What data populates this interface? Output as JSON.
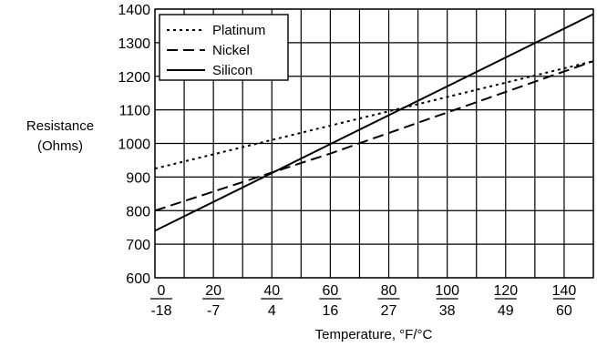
{
  "chart_data": {
    "type": "line",
    "title": "",
    "xlabel": "Temperature, °F/°C",
    "ylabel_lines": [
      "Resistance",
      "(Ohms)"
    ],
    "xlim": [
      0,
      150
    ],
    "ylim": [
      600,
      1400
    ],
    "yticks": [
      600,
      700,
      800,
      900,
      1000,
      1100,
      1200,
      1300,
      1400
    ],
    "xticks": [
      {
        "f": "0",
        "c": "-18",
        "x": 0
      },
      {
        "f": "20",
        "c": "-7",
        "x": 20
      },
      {
        "f": "40",
        "c": "4",
        "x": 40
      },
      {
        "f": "60",
        "c": "16",
        "x": 60
      },
      {
        "f": "80",
        "c": "27",
        "x": 80
      },
      {
        "f": "100",
        "c": "38",
        "x": 100
      },
      {
        "f": "120",
        "c": "49",
        "x": 120
      },
      {
        "f": "140",
        "c": "60",
        "x": 140
      }
    ],
    "grid": true,
    "legend_position": "top-left",
    "series": [
      {
        "name": "Platinum",
        "style": "dotted",
        "x": [
          0,
          150
        ],
        "y": [
          925,
          1245
        ]
      },
      {
        "name": "Nickel",
        "style": "dashed",
        "x": [
          0,
          60,
          150
        ],
        "y": [
          800,
          970,
          1245
        ]
      },
      {
        "name": "Silicon",
        "style": "solid",
        "x": [
          0,
          150
        ],
        "y": [
          740,
          1385
        ]
      }
    ]
  }
}
